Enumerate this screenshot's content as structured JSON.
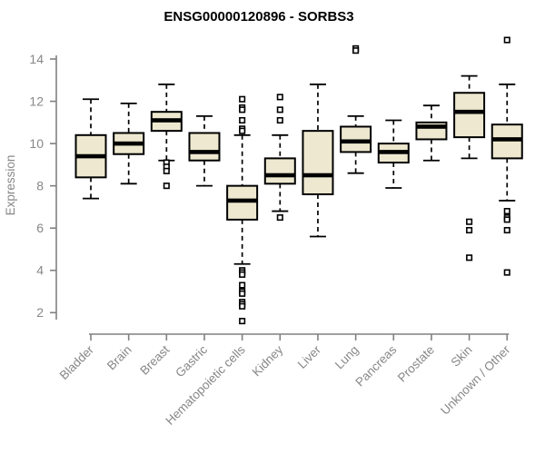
{
  "title": "ENSG00000120896 - SORBS3",
  "chart_data": {
    "type": "box",
    "title": "ENSG00000120896 - SORBS3",
    "xlabel": "",
    "ylabel": "Expression",
    "ylim": [
      1.5,
      15.3
    ],
    "yticks": [
      2,
      4,
      6,
      8,
      10,
      12,
      14
    ],
    "grid": false,
    "legend": "none",
    "whisker_style": "dashed",
    "outlier_shape": "open-square",
    "categories": [
      "Bladder",
      "Brain",
      "Breast",
      "Gastric",
      "Hematopoietic cells",
      "Kidney",
      "Liver",
      "Lung",
      "Pancreas",
      "Prostate",
      "Skin",
      "Unknown / Other"
    ],
    "series": [
      {
        "name": "Bladder",
        "whisker_low": 7.4,
        "q1": 8.4,
        "median": 9.4,
        "q3": 10.4,
        "whisker_high": 12.1,
        "outliers": []
      },
      {
        "name": "Brain",
        "whisker_low": 8.1,
        "q1": 9.5,
        "median": 10.0,
        "q3": 10.5,
        "whisker_high": 11.9,
        "outliers": []
      },
      {
        "name": "Breast",
        "whisker_low": 9.2,
        "q1": 10.6,
        "median": 11.1,
        "q3": 11.5,
        "whisker_high": 12.8,
        "outliers": [
          9.1,
          8.9,
          8.7,
          8.0
        ]
      },
      {
        "name": "Gastric",
        "whisker_low": 8.0,
        "q1": 9.2,
        "median": 9.6,
        "q3": 10.5,
        "whisker_high": 11.3,
        "outliers": []
      },
      {
        "name": "Hematopoietic cells",
        "whisker_low": 4.3,
        "q1": 6.4,
        "median": 7.3,
        "q3": 8.0,
        "whisker_high": 10.4,
        "outliers": [
          12.1,
          11.7,
          11.6,
          11.1,
          10.7,
          10.6,
          4.0,
          3.9,
          3.8,
          3.3,
          3.0,
          2.9,
          2.5,
          2.4,
          2.3,
          1.6
        ]
      },
      {
        "name": "Kidney",
        "whisker_low": 6.8,
        "q1": 8.1,
        "median": 8.5,
        "q3": 9.3,
        "whisker_high": 10.4,
        "outliers": [
          12.2,
          11.6,
          11.1,
          6.5
        ]
      },
      {
        "name": "Liver",
        "whisker_low": 5.6,
        "q1": 7.6,
        "median": 8.5,
        "q3": 10.6,
        "whisker_high": 12.8,
        "outliers": []
      },
      {
        "name": "Lung",
        "whisker_low": 8.6,
        "q1": 9.6,
        "median": 10.1,
        "q3": 10.8,
        "whisker_high": 11.3,
        "outliers": [
          14.5,
          14.4
        ]
      },
      {
        "name": "Pancreas",
        "whisker_low": 7.9,
        "q1": 9.1,
        "median": 9.6,
        "q3": 10.0,
        "whisker_high": 11.1,
        "outliers": []
      },
      {
        "name": "Prostate",
        "whisker_low": 9.2,
        "q1": 10.2,
        "median": 10.8,
        "q3": 11.0,
        "whisker_high": 11.8,
        "outliers": []
      },
      {
        "name": "Skin",
        "whisker_low": 9.3,
        "q1": 10.3,
        "median": 11.5,
        "q3": 12.4,
        "whisker_high": 13.2,
        "outliers": [
          6.3,
          5.9,
          4.6
        ]
      },
      {
        "name": "Unknown / Other",
        "whisker_low": 7.3,
        "q1": 9.3,
        "median": 10.2,
        "q3": 10.9,
        "whisker_high": 12.8,
        "outliers": [
          14.9,
          6.8,
          6.5,
          6.4,
          5.9,
          3.9
        ]
      }
    ],
    "colors": {
      "box_fill": "#EDE8CF",
      "box_stroke": "#000000",
      "median": "#000000",
      "axis_line": "#808080",
      "axis_text": "#878787",
      "title": "#000000",
      "background": "#FFFFFF"
    }
  }
}
